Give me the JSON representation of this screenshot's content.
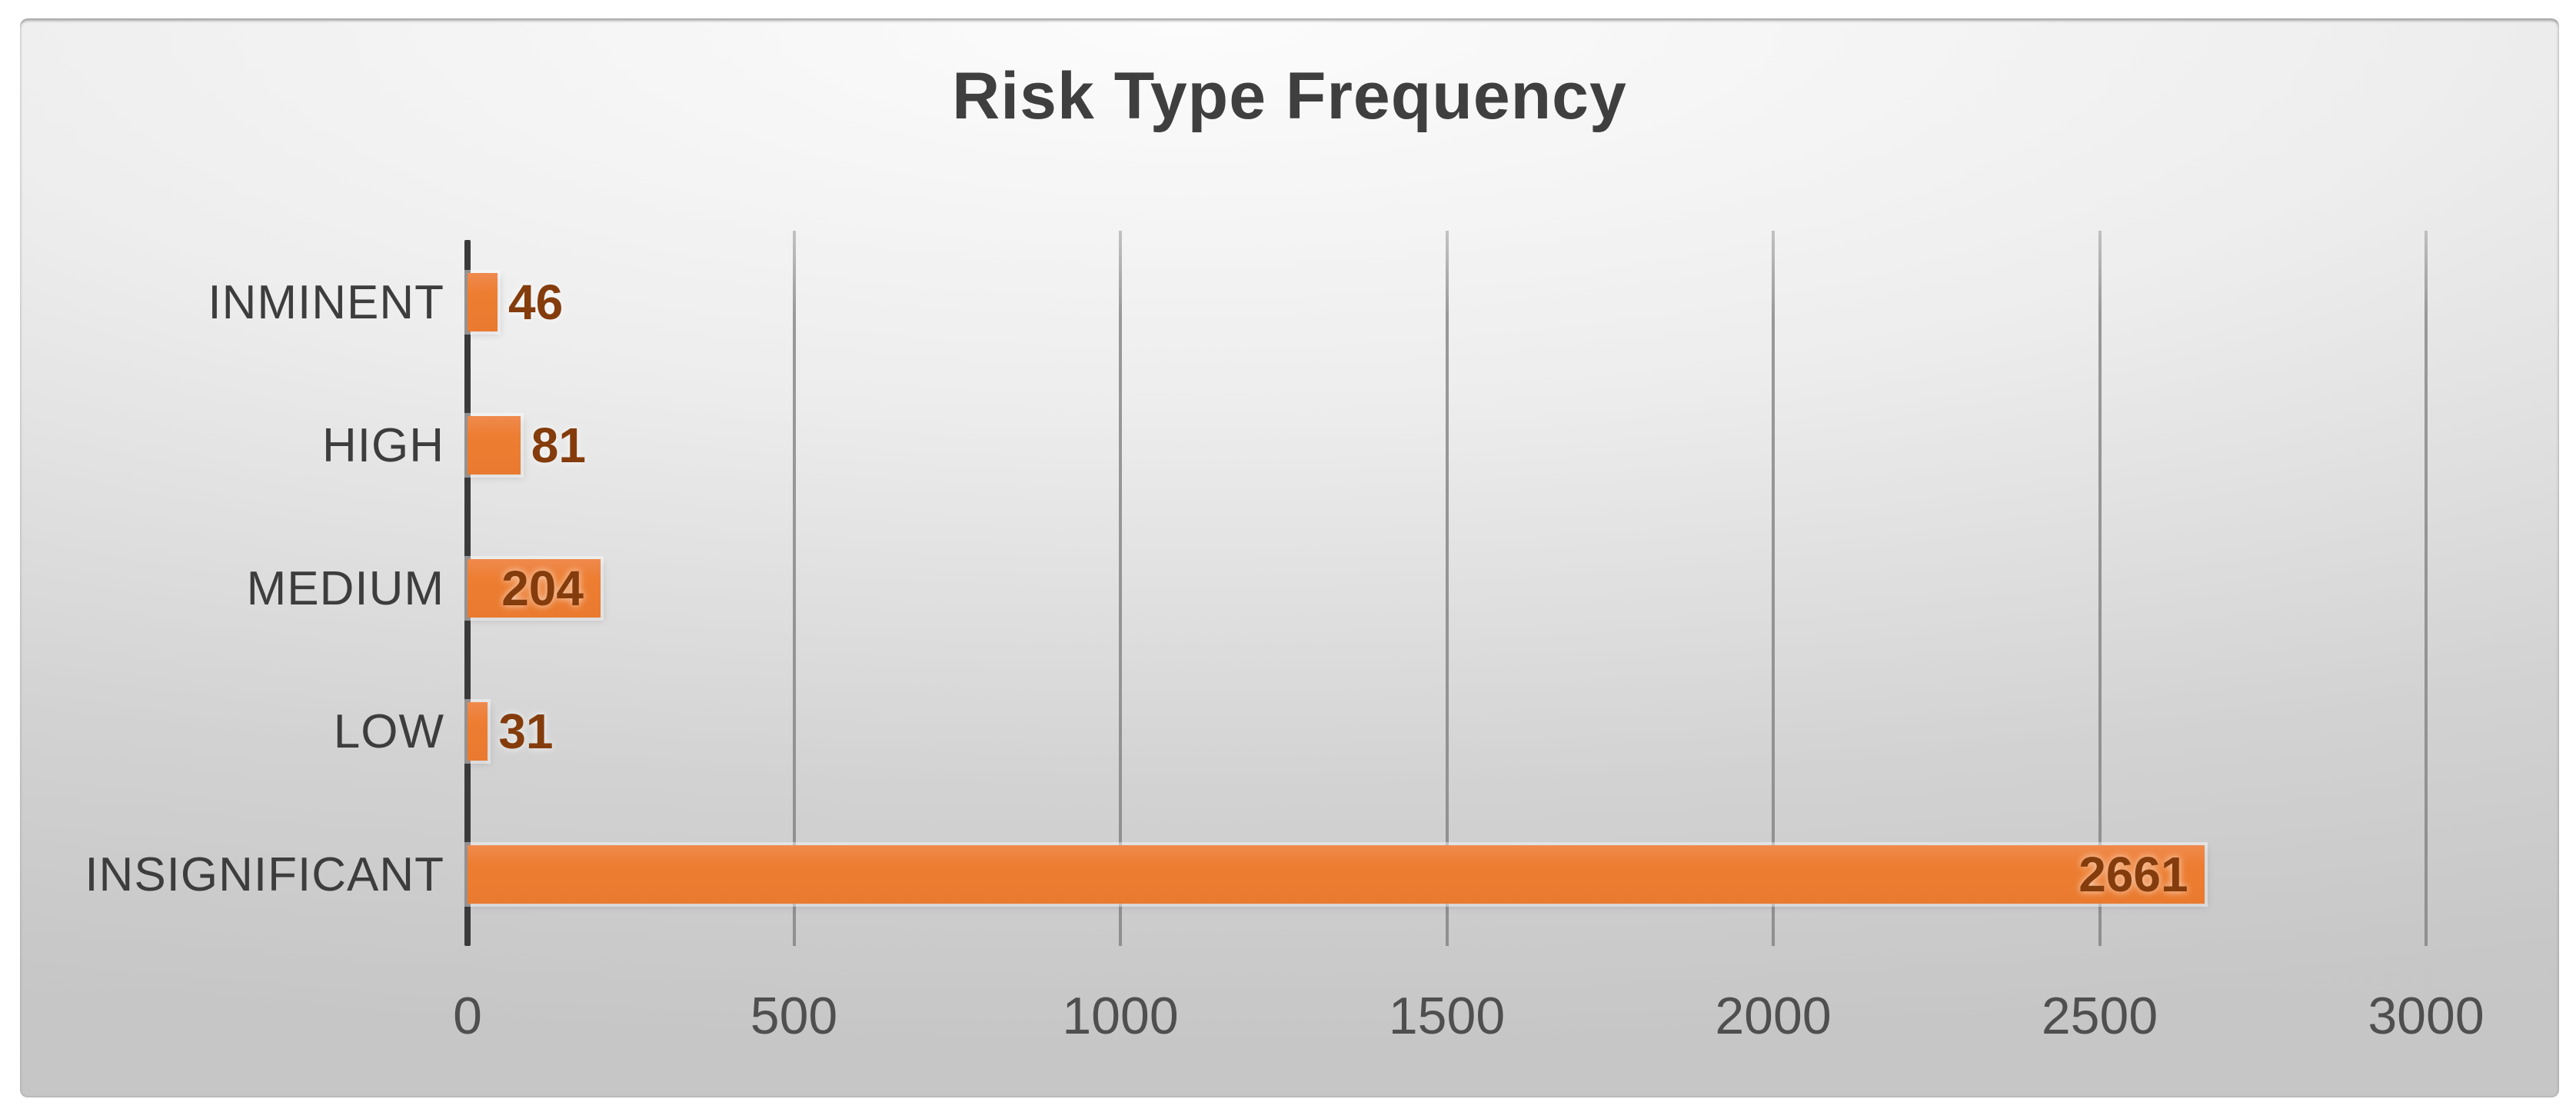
{
  "chart_data": {
    "type": "bar",
    "orientation": "horizontal",
    "title": "Risk Type Frequency",
    "categories": [
      "INMINENT",
      "HIGH",
      "MEDIUM",
      "LOW",
      "INSIGNIFICANT"
    ],
    "values": [
      46,
      81,
      204,
      31,
      2661
    ],
    "xlabel": "",
    "ylabel": "",
    "xlim": [
      0,
      3000
    ],
    "x_ticks": [
      0,
      500,
      1000,
      1500,
      2000,
      2500,
      3000
    ],
    "grid": true,
    "legend": false,
    "data_labels_shown": true,
    "colors": {
      "bar": "#ED7D31",
      "data_label": "#843C0C",
      "axis_line": "#3A3A3A",
      "gridline": "#8C8C8C",
      "tick_label": "#4F4F4F",
      "category_label": "#3D3D3D",
      "title": "#3F3F3F",
      "background_top": "#FBFBFB",
      "background_bottom": "#C7C7C7"
    }
  }
}
